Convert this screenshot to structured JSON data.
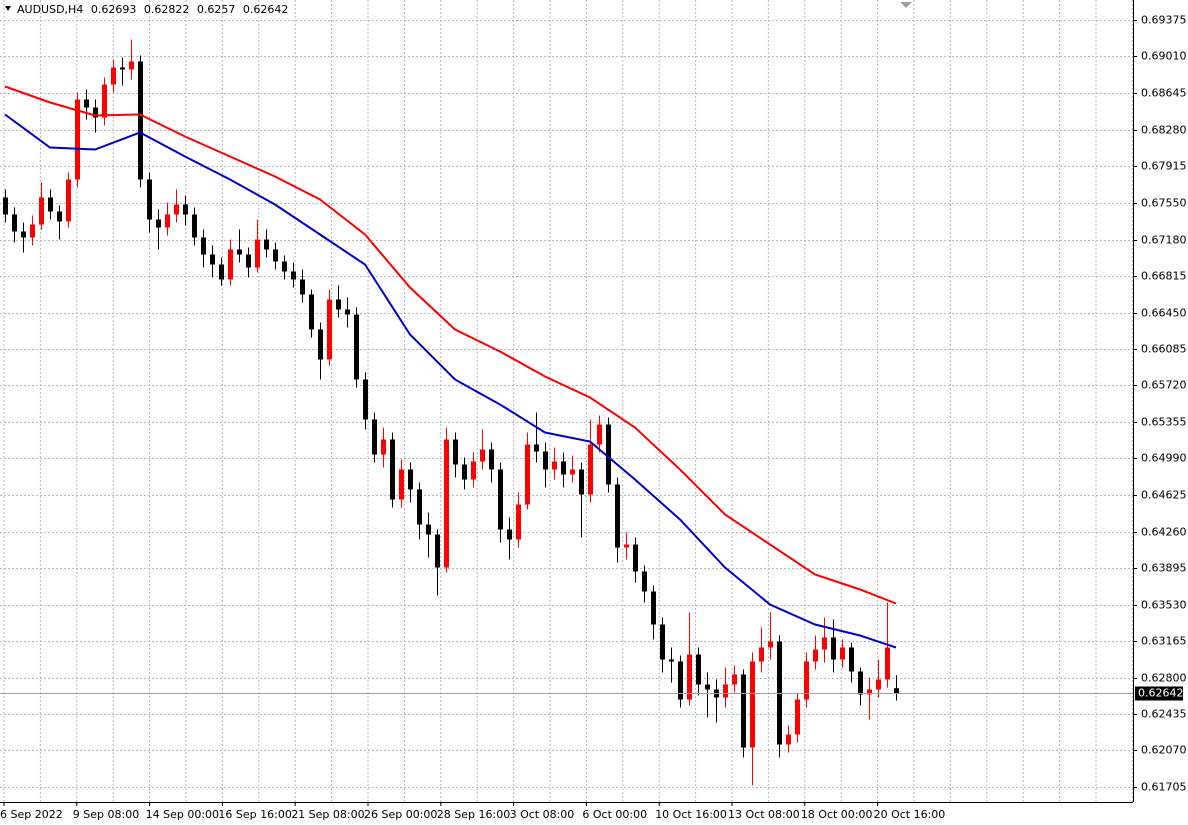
{
  "chart_data": {
    "type": "candlestick",
    "symbol": "AUDUSD,H4",
    "up_color": "#ff0000",
    "down_color": "#000000",
    "grid": true,
    "ylim": [
      0.61575,
      0.69575
    ],
    "yticks": [
      {
        "value": 0.69375,
        "label": "0.69375"
      },
      {
        "value": 0.6901,
        "label": "0.69010"
      },
      {
        "value": 0.68645,
        "label": "0.68645"
      },
      {
        "value": 0.6828,
        "label": "0.68280"
      },
      {
        "value": 0.67915,
        "label": "0.67915"
      },
      {
        "value": 0.6755,
        "label": "0.67550"
      },
      {
        "value": 0.6718,
        "label": "0.67180"
      },
      {
        "value": 0.66815,
        "label": "0.66815"
      },
      {
        "value": 0.6645,
        "label": "0.66450"
      },
      {
        "value": 0.66085,
        "label": "0.66085"
      },
      {
        "value": 0.6572,
        "label": "0.65720"
      },
      {
        "value": 0.65355,
        "label": "0.65355"
      },
      {
        "value": 0.6499,
        "label": "0.64990"
      },
      {
        "value": 0.64625,
        "label": "0.64625"
      },
      {
        "value": 0.6426,
        "label": "0.64260"
      },
      {
        "value": 0.63895,
        "label": "0.63895"
      },
      {
        "value": 0.6353,
        "label": "0.63530"
      },
      {
        "value": 0.63165,
        "label": "0.63165"
      },
      {
        "value": 0.628,
        "label": "0.62800"
      },
      {
        "value": 0.62435,
        "label": "0.62435"
      },
      {
        "value": 0.6207,
        "label": "0.62070"
      },
      {
        "value": 0.61705,
        "label": "0.61705"
      }
    ],
    "categories": [
      "6 Sep 2022",
      "9 Sep 08:00",
      "14 Sep 00:00",
      "16 Sep 16:00",
      "21 Sep 08:00",
      "26 Sep 00:00",
      "28 Sep 16:00",
      "3 Oct 08:00",
      "6 Oct 00:00",
      "10 Oct 16:00",
      "13 Oct 08:00",
      "18 Oct 00:00",
      "20 Oct 16:00"
    ],
    "ohlc": [
      [
        0.676,
        0.6768,
        0.6735,
        0.6743
      ],
      [
        0.6743,
        0.675,
        0.6715,
        0.6726
      ],
      [
        0.6726,
        0.6735,
        0.6705,
        0.672
      ],
      [
        0.672,
        0.6742,
        0.6712,
        0.6733
      ],
      [
        0.6733,
        0.6775,
        0.6728,
        0.676
      ],
      [
        0.676,
        0.6768,
        0.6738,
        0.6746
      ],
      [
        0.6746,
        0.6752,
        0.6718,
        0.6736
      ],
      [
        0.6736,
        0.6785,
        0.673,
        0.6778
      ],
      [
        0.6778,
        0.6865,
        0.677,
        0.6858
      ],
      [
        0.6858,
        0.6868,
        0.6838,
        0.685
      ],
      [
        0.685,
        0.6858,
        0.6825,
        0.684
      ],
      [
        0.684,
        0.688,
        0.6832,
        0.6873
      ],
      [
        0.6873,
        0.6898,
        0.6865,
        0.689
      ],
      [
        0.689,
        0.69,
        0.6872,
        0.6888
      ],
      [
        0.6888,
        0.6918,
        0.6878,
        0.6896
      ],
      [
        0.6896,
        0.6902,
        0.677,
        0.6778
      ],
      [
        0.6778,
        0.6785,
        0.6725,
        0.6738
      ],
      [
        0.6738,
        0.6748,
        0.6708,
        0.673
      ],
      [
        0.673,
        0.6755,
        0.6722,
        0.6743
      ],
      [
        0.6743,
        0.6768,
        0.6735,
        0.6753
      ],
      [
        0.6753,
        0.6762,
        0.6732,
        0.6743
      ],
      [
        0.6743,
        0.675,
        0.6712,
        0.672
      ],
      [
        0.672,
        0.6728,
        0.669,
        0.6703
      ],
      [
        0.6703,
        0.6712,
        0.668,
        0.6693
      ],
      [
        0.6693,
        0.67,
        0.6672,
        0.6678
      ],
      [
        0.6678,
        0.6718,
        0.6672,
        0.6708
      ],
      [
        0.6708,
        0.6728,
        0.6695,
        0.6703
      ],
      [
        0.6703,
        0.671,
        0.668,
        0.669
      ],
      [
        0.669,
        0.6738,
        0.6685,
        0.6718
      ],
      [
        0.6718,
        0.6728,
        0.67,
        0.6708
      ],
      [
        0.6708,
        0.6715,
        0.6688,
        0.6696
      ],
      [
        0.6696,
        0.6702,
        0.6678,
        0.6686
      ],
      [
        0.6686,
        0.6695,
        0.667,
        0.6678
      ],
      [
        0.6678,
        0.6688,
        0.6655,
        0.6663
      ],
      [
        0.6663,
        0.6668,
        0.662,
        0.6628
      ],
      [
        0.6628,
        0.6635,
        0.6578,
        0.6598
      ],
      [
        0.6598,
        0.6668,
        0.6592,
        0.6658
      ],
      [
        0.6658,
        0.6672,
        0.664,
        0.6648
      ],
      [
        0.6648,
        0.666,
        0.663,
        0.6643
      ],
      [
        0.6643,
        0.665,
        0.657,
        0.6578
      ],
      [
        0.6578,
        0.6585,
        0.6528,
        0.6538
      ],
      [
        0.6538,
        0.6545,
        0.6495,
        0.6503
      ],
      [
        0.6503,
        0.653,
        0.649,
        0.6518
      ],
      [
        0.6518,
        0.6525,
        0.645,
        0.6458
      ],
      [
        0.6458,
        0.6498,
        0.645,
        0.6488
      ],
      [
        0.6488,
        0.6495,
        0.6455,
        0.6468
      ],
      [
        0.6468,
        0.6475,
        0.6418,
        0.6433
      ],
      [
        0.6433,
        0.6445,
        0.64,
        0.6423
      ],
      [
        0.6423,
        0.6428,
        0.6362,
        0.639
      ],
      [
        0.639,
        0.653,
        0.6385,
        0.6518
      ],
      [
        0.6518,
        0.6525,
        0.648,
        0.6493
      ],
      [
        0.6493,
        0.65,
        0.6468,
        0.6478
      ],
      [
        0.6478,
        0.6505,
        0.647,
        0.6496
      ],
      [
        0.6496,
        0.6528,
        0.6488,
        0.6508
      ],
      [
        0.6508,
        0.6515,
        0.6475,
        0.6488
      ],
      [
        0.6488,
        0.6495,
        0.6415,
        0.6428
      ],
      [
        0.6428,
        0.644,
        0.6398,
        0.6418
      ],
      [
        0.6418,
        0.6465,
        0.641,
        0.6453
      ],
      [
        0.6453,
        0.6525,
        0.6448,
        0.6513
      ],
      [
        0.6513,
        0.6545,
        0.6495,
        0.6506
      ],
      [
        0.6506,
        0.6515,
        0.647,
        0.6488
      ],
      [
        0.6488,
        0.651,
        0.6478,
        0.6496
      ],
      [
        0.6496,
        0.6505,
        0.647,
        0.6483
      ],
      [
        0.6483,
        0.6502,
        0.6475,
        0.6488
      ],
      [
        0.6488,
        0.6495,
        0.642,
        0.6463
      ],
      [
        0.6463,
        0.6538,
        0.6455,
        0.6513
      ],
      [
        0.6513,
        0.6542,
        0.6505,
        0.6533
      ],
      [
        0.6533,
        0.654,
        0.6465,
        0.6473
      ],
      [
        0.6473,
        0.648,
        0.6395,
        0.641
      ],
      [
        0.641,
        0.6425,
        0.6398,
        0.6413
      ],
      [
        0.6413,
        0.642,
        0.6375,
        0.6386
      ],
      [
        0.6386,
        0.6392,
        0.6355,
        0.6366
      ],
      [
        0.6366,
        0.6372,
        0.6318,
        0.6333
      ],
      [
        0.6333,
        0.634,
        0.6285,
        0.6298
      ],
      [
        0.6298,
        0.631,
        0.6275,
        0.6296
      ],
      [
        0.6296,
        0.6302,
        0.625,
        0.6258
      ],
      [
        0.6258,
        0.6345,
        0.6252,
        0.6303
      ],
      [
        0.6303,
        0.631,
        0.6262,
        0.6273
      ],
      [
        0.6273,
        0.6285,
        0.624,
        0.6268
      ],
      [
        0.6268,
        0.6278,
        0.6235,
        0.626
      ],
      [
        0.626,
        0.629,
        0.625,
        0.6273
      ],
      [
        0.6273,
        0.6292,
        0.6265,
        0.6283
      ],
      [
        0.6283,
        0.6288,
        0.62,
        0.621
      ],
      [
        0.621,
        0.6305,
        0.6172,
        0.6296
      ],
      [
        0.6296,
        0.633,
        0.6285,
        0.631
      ],
      [
        0.631,
        0.6345,
        0.6298,
        0.6316
      ],
      [
        0.6316,
        0.6322,
        0.62,
        0.6213
      ],
      [
        0.6213,
        0.6232,
        0.6205,
        0.6223
      ],
      [
        0.6223,
        0.6265,
        0.6215,
        0.6258
      ],
      [
        0.6258,
        0.6305,
        0.625,
        0.6296
      ],
      [
        0.6296,
        0.6322,
        0.6288,
        0.6308
      ],
      [
        0.6308,
        0.634,
        0.6295,
        0.632
      ],
      [
        0.632,
        0.6338,
        0.6285,
        0.6298
      ],
      [
        0.6298,
        0.6318,
        0.629,
        0.631
      ],
      [
        0.631,
        0.6315,
        0.6275,
        0.6286
      ],
      [
        0.6286,
        0.629,
        0.6252,
        0.6263
      ],
      [
        0.6263,
        0.628,
        0.6238,
        0.6268
      ],
      [
        0.6268,
        0.6298,
        0.626,
        0.6278
      ],
      [
        0.6278,
        0.6355,
        0.627,
        0.631
      ],
      [
        0.62693,
        0.62822,
        0.6257,
        0.62642
      ]
    ],
    "series": [
      {
        "color": "#ff0000",
        "x": [
          0,
          5,
          10,
          15,
          20,
          25,
          30,
          35,
          40,
          45,
          50,
          55,
          60,
          65,
          70,
          75,
          80,
          85,
          90,
          95,
          99
        ],
        "values": [
          0.6871,
          0.6855,
          0.6842,
          0.6843,
          0.6821,
          0.6801,
          0.6781,
          0.6758,
          0.6723,
          0.667,
          0.6628,
          0.6606,
          0.6581,
          0.656,
          0.653,
          0.6488,
          0.6443,
          0.6413,
          0.6383,
          0.6368,
          0.6354
        ]
      },
      {
        "color": "#0000cd",
        "x": [
          0,
          5,
          10,
          15,
          20,
          25,
          30,
          35,
          40,
          45,
          50,
          55,
          60,
          65,
          70,
          75,
          80,
          85,
          90,
          95,
          99
        ],
        "values": [
          0.6843,
          0.681,
          0.6808,
          0.6825,
          0.6801,
          0.6778,
          0.6753,
          0.6723,
          0.6693,
          0.6623,
          0.6578,
          0.6553,
          0.6525,
          0.6516,
          0.6478,
          0.6438,
          0.639,
          0.6353,
          0.6333,
          0.6322,
          0.631
        ]
      }
    ]
  }
}
